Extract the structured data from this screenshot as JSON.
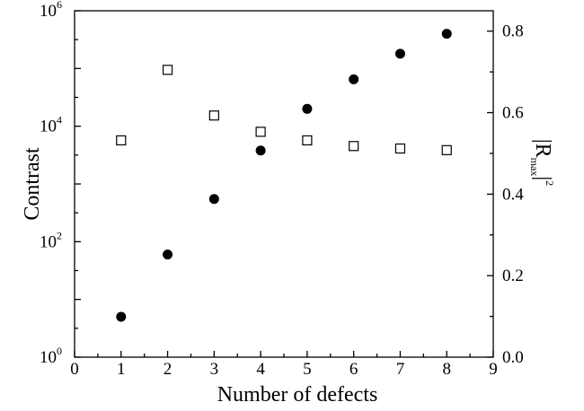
{
  "chart_data": {
    "type": "scatter",
    "title": "",
    "xlabel": "Number of defects",
    "ylabel_left": "Contrast",
    "ylabel_right": {
      "main": "|R",
      "sub": "max",
      "tail": "|",
      "sup": "2"
    },
    "x_range": [
      0,
      9
    ],
    "x_ticks": [
      "0",
      "1",
      "2",
      "3",
      "4",
      "5",
      "6",
      "7",
      "8",
      "9"
    ],
    "y_left": {
      "scale": "log",
      "range": [
        1,
        1000000
      ],
      "ticks": [
        {
          "base": "10",
          "exp": "0"
        },
        {
          "base": "10",
          "exp": "2"
        },
        {
          "base": "10",
          "exp": "4"
        },
        {
          "base": "10",
          "exp": "6"
        }
      ]
    },
    "y_right": {
      "scale": "linear",
      "range": [
        0.0,
        0.85
      ],
      "ticks": [
        "0.0",
        "0.2",
        "0.4",
        "0.6",
        "0.8"
      ]
    },
    "grid": false,
    "series": [
      {
        "marker": "filled-circle",
        "axis": "left",
        "x": [
          1,
          2,
          3,
          4,
          5,
          6,
          7,
          8
        ],
        "y": [
          5,
          60,
          550,
          3800,
          20000,
          65000,
          180000,
          400000
        ]
      },
      {
        "marker": "open-square",
        "axis": "right",
        "x": [
          1,
          2,
          3,
          4,
          5,
          6,
          7,
          8
        ],
        "y": [
          0.532,
          0.705,
          0.593,
          0.553,
          0.532,
          0.518,
          0.512,
          0.508
        ]
      }
    ],
    "colors": {
      "marker": "#000000",
      "background": "#ffffff"
    }
  }
}
